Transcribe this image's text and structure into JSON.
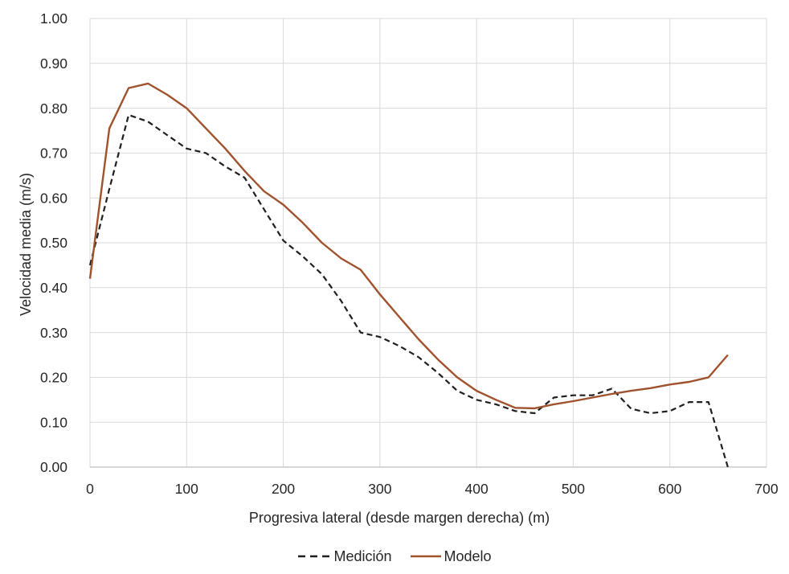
{
  "figure": {
    "background": "#FFFFFF"
  },
  "chart_data": {
    "type": "line",
    "title": "",
    "xlabel": "Progresiva lateral (desde margen derecha) (m)",
    "ylabel": "Velocidad media (m/s)",
    "xlim": [
      0,
      700
    ],
    "ylim": [
      0.0,
      1.0
    ],
    "x_ticks": [
      0,
      100,
      200,
      300,
      400,
      500,
      600,
      700
    ],
    "y_ticks": [
      "0.00",
      "0.10",
      "0.20",
      "0.30",
      "0.40",
      "0.50",
      "0.60",
      "0.70",
      "0.80",
      "0.90",
      "1.00"
    ],
    "grid": true,
    "legend_position": "bottom-center",
    "x": [
      0,
      20,
      40,
      60,
      80,
      100,
      120,
      140,
      160,
      180,
      200,
      220,
      240,
      260,
      280,
      300,
      320,
      340,
      360,
      380,
      400,
      420,
      440,
      460,
      480,
      500,
      520,
      540,
      560,
      580,
      600,
      620,
      640,
      660
    ],
    "series": [
      {
        "name": "Medición",
        "key": "medicion",
        "color": "#1F1F1F",
        "style": "dashed",
        "width": 2.2,
        "values": [
          0.45,
          0.62,
          0.785,
          0.77,
          0.74,
          0.71,
          0.7,
          0.67,
          0.645,
          0.575,
          0.505,
          0.47,
          0.43,
          0.37,
          0.3,
          0.29,
          0.27,
          0.245,
          0.21,
          0.17,
          0.15,
          0.14,
          0.125,
          0.12,
          0.155,
          0.16,
          0.16,
          0.175,
          0.13,
          0.12,
          0.125,
          0.145,
          0.145,
          0.0
        ]
      },
      {
        "name": "Modelo",
        "key": "modelo",
        "color": "#A0522D",
        "style": "solid",
        "width": 2.4,
        "values": [
          0.42,
          0.755,
          0.845,
          0.855,
          0.83,
          0.8,
          0.755,
          0.71,
          0.66,
          0.615,
          0.585,
          0.545,
          0.5,
          0.465,
          0.44,
          0.385,
          0.335,
          0.285,
          0.24,
          0.2,
          0.17,
          0.15,
          0.132,
          0.131,
          0.14,
          0.147,
          0.155,
          0.163,
          0.17,
          0.176,
          0.184,
          0.19,
          0.2,
          0.25
        ]
      }
    ],
    "colors": {
      "grid": "#D9D9D9",
      "axis": "#BFBFBF",
      "text": "#262626",
      "background": "#FFFFFF"
    }
  }
}
